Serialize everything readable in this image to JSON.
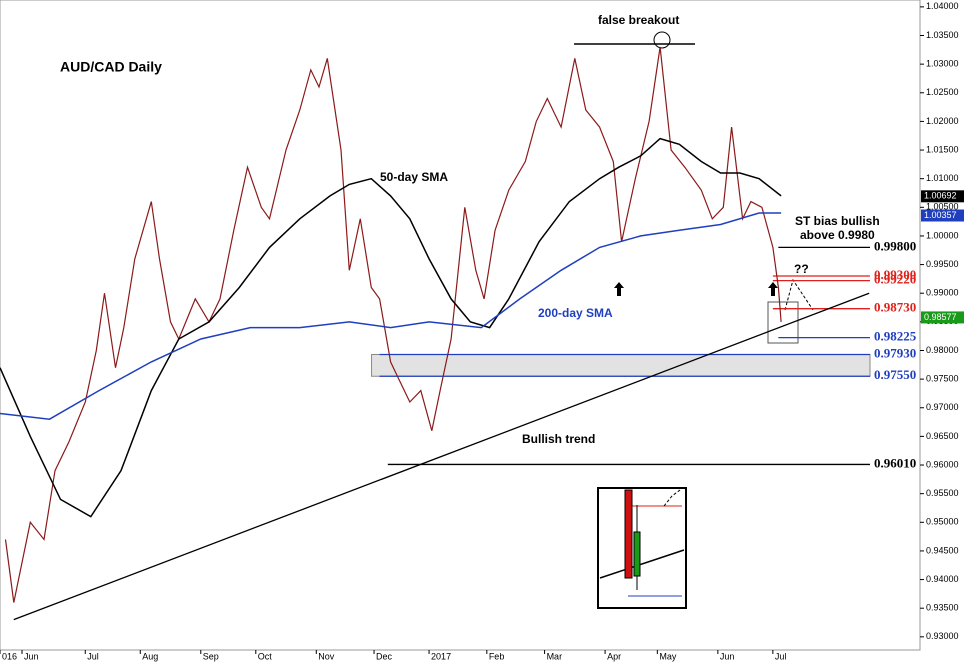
{
  "chart_data": {
    "type": "line",
    "title": "AUD/CAD Daily",
    "annotations": {
      "false_breakout": "false breakout",
      "sma50": "50-day SMA",
      "sma200": "200-day SMA",
      "bias_1": "ST bias bullish",
      "bias_2": "above 0.9980",
      "trend": "Bullish trend",
      "question": "??"
    },
    "xlim": [
      0,
      334.5
    ],
    "xticks": [
      {
        "value": 0,
        "label": "016"
      },
      {
        "value": 8,
        "label": "Jun"
      },
      {
        "value": 31,
        "label": "Jul"
      },
      {
        "value": 51,
        "label": "Aug"
      },
      {
        "value": 73,
        "label": "Sep"
      },
      {
        "value": 93,
        "label": "Oct"
      },
      {
        "value": 115,
        "label": "Nov"
      },
      {
        "value": 136,
        "label": "Dec"
      },
      {
        "value": 156,
        "label": "2017"
      },
      {
        "value": 177,
        "label": "Feb"
      },
      {
        "value": 198,
        "label": "Mar"
      },
      {
        "value": 220,
        "label": "Apr"
      },
      {
        "value": 239,
        "label": "May"
      },
      {
        "value": 261,
        "label": "Jun"
      },
      {
        "value": 281,
        "label": "Jul"
      }
    ],
    "ylim": [
      0.9277,
      1.0412
    ],
    "yticks": [
      {
        "value": 0.93,
        "label": "0.93000"
      },
      {
        "value": 0.935,
        "label": "0.93500"
      },
      {
        "value": 0.94,
        "label": "0.94000"
      },
      {
        "value": 0.945,
        "label": "0.94500"
      },
      {
        "value": 0.95,
        "label": "0.95000"
      },
      {
        "value": 0.955,
        "label": "0.95500"
      },
      {
        "value": 0.96,
        "label": "0.96000"
      },
      {
        "value": 0.965,
        "label": "0.96500"
      },
      {
        "value": 0.97,
        "label": "0.97000"
      },
      {
        "value": 0.975,
        "label": "0.97500"
      },
      {
        "value": 0.98,
        "label": "0.98000"
      },
      {
        "value": 0.985,
        "label": "0.98500"
      },
      {
        "value": 0.99,
        "label": "0.99000"
      },
      {
        "value": 0.995,
        "label": "0.99500"
      },
      {
        "value": 1.0,
        "label": "1.00000"
      },
      {
        "value": 1.005,
        "label": "1.00500"
      },
      {
        "value": 1.01,
        "label": "1.01000"
      },
      {
        "value": 1.015,
        "label": "1.01500"
      },
      {
        "value": 1.02,
        "label": "1.02000"
      },
      {
        "value": 1.025,
        "label": "1.02500"
      },
      {
        "value": 1.03,
        "label": "1.03000"
      },
      {
        "value": 1.035,
        "label": "1.03500"
      },
      {
        "value": 1.04,
        "label": "1.04000"
      }
    ],
    "series": [
      {
        "color": "#8b1a1a",
        "x": [
          2,
          5,
          11,
          16,
          20,
          25,
          31,
          35,
          38,
          42,
          45,
          49,
          55,
          58,
          62,
          65,
          71,
          76,
          80,
          85,
          90,
          95,
          98,
          104,
          109,
          113,
          116,
          119,
          124,
          127,
          131,
          135,
          138,
          142,
          145,
          149,
          153,
          157,
          160,
          164,
          169,
          173,
          176,
          180,
          185,
          191,
          195,
          199,
          204,
          209,
          213,
          218,
          223,
          226,
          231,
          236,
          240,
          244,
          249,
          255,
          259,
          263,
          266,
          270,
          273,
          277,
          281,
          283,
          284
        ],
        "values": [
          0.947,
          0.936,
          0.95,
          0.947,
          0.959,
          0.964,
          0.971,
          0.98,
          0.99,
          0.977,
          0.984,
          0.996,
          1.006,
          0.996,
          0.985,
          0.982,
          0.989,
          0.985,
          0.989,
          1.001,
          1.012,
          1.005,
          1.003,
          1.015,
          1.022,
          1.029,
          1.026,
          1.031,
          1.015,
          0.994,
          1.003,
          0.991,
          0.989,
          0.978,
          0.975,
          0.971,
          0.973,
          0.966,
          0.973,
          0.982,
          1.005,
          0.994,
          0.989,
          1.001,
          1.008,
          1.013,
          1.02,
          1.024,
          1.019,
          1.031,
          1.022,
          1.019,
          1.013,
          0.999,
          1.01,
          1.02,
          1.033,
          1.015,
          1.012,
          1.008,
          1.003,
          1.005,
          1.019,
          1.003,
          1.006,
          1.005,
          0.998,
          0.991,
          0.985
        ]
      },
      {
        "color": "#000000",
        "x": [
          0,
          11,
          22,
          33,
          44,
          55,
          65,
          76,
          87,
          98,
          109,
          120,
          127,
          135,
          142,
          149,
          156,
          164,
          171,
          178,
          185,
          196,
          207,
          218,
          225,
          233,
          240,
          247,
          255,
          262,
          269,
          276,
          284
        ],
        "values": [
          0.977,
          0.965,
          0.954,
          0.951,
          0.959,
          0.973,
          0.982,
          0.985,
          0.991,
          0.998,
          1.003,
          1.007,
          1.009,
          1.01,
          1.007,
          1.003,
          0.996,
          0.989,
          0.985,
          0.984,
          0.989,
          0.999,
          1.006,
          1.01,
          1.012,
          1.014,
          1.017,
          1.016,
          1.013,
          1.011,
          1.011,
          1.01,
          1.007
        ]
      },
      {
        "color": "#1f3fbf",
        "x": [
          0,
          18,
          36,
          55,
          73,
          91,
          109,
          127,
          142,
          156,
          175,
          189,
          204,
          218,
          233,
          247,
          262,
          276,
          284
        ],
        "values": [
          0.969,
          0.968,
          0.973,
          0.978,
          0.982,
          0.984,
          0.984,
          0.985,
          0.984,
          0.985,
          0.984,
          0.989,
          0.994,
          0.998,
          1.0,
          1.001,
          1.002,
          1.004,
          1.004
        ]
      }
    ],
    "trend_line": {
      "color": "#000000",
      "x": [
        5,
        316
      ],
      "values": [
        0.933,
        0.99
      ]
    },
    "levels": [
      {
        "value": 0.998,
        "label": "0.99800",
        "color": "#000000",
        "x_start": 283
      },
      {
        "value": 0.993,
        "label": "0.99300",
        "color": "#e0201a",
        "x_start": 281
      },
      {
        "value": 0.9922,
        "label": "0.99220",
        "color": "#e0201a",
        "x_start": 281
      },
      {
        "value": 0.9873,
        "label": "0.98730",
        "color": "#e0201a",
        "x_start": 281
      },
      {
        "value": 0.98225,
        "label": "0.98225",
        "color": "#1f3fbf",
        "x_start": 283
      },
      {
        "value": 0.9793,
        "label": "0.97930",
        "color": "#1f3fbf",
        "x_start": 138
      },
      {
        "value": 0.9755,
        "label": "0.97550",
        "color": "#1f3fbf",
        "x_start": 138
      },
      {
        "value": 0.9601,
        "label": "0.96010",
        "color": "#000000",
        "x_start": 141
      }
    ],
    "axis_tags": [
      {
        "value": 1.00692,
        "label": "1.00692",
        "color": "#000000"
      },
      {
        "value": 1.00357,
        "label": "1.00357",
        "color": "#1f3fbf"
      },
      {
        "value": 0.98577,
        "label": "0.98577",
        "color": "#1a9a1a"
      }
    ]
  }
}
